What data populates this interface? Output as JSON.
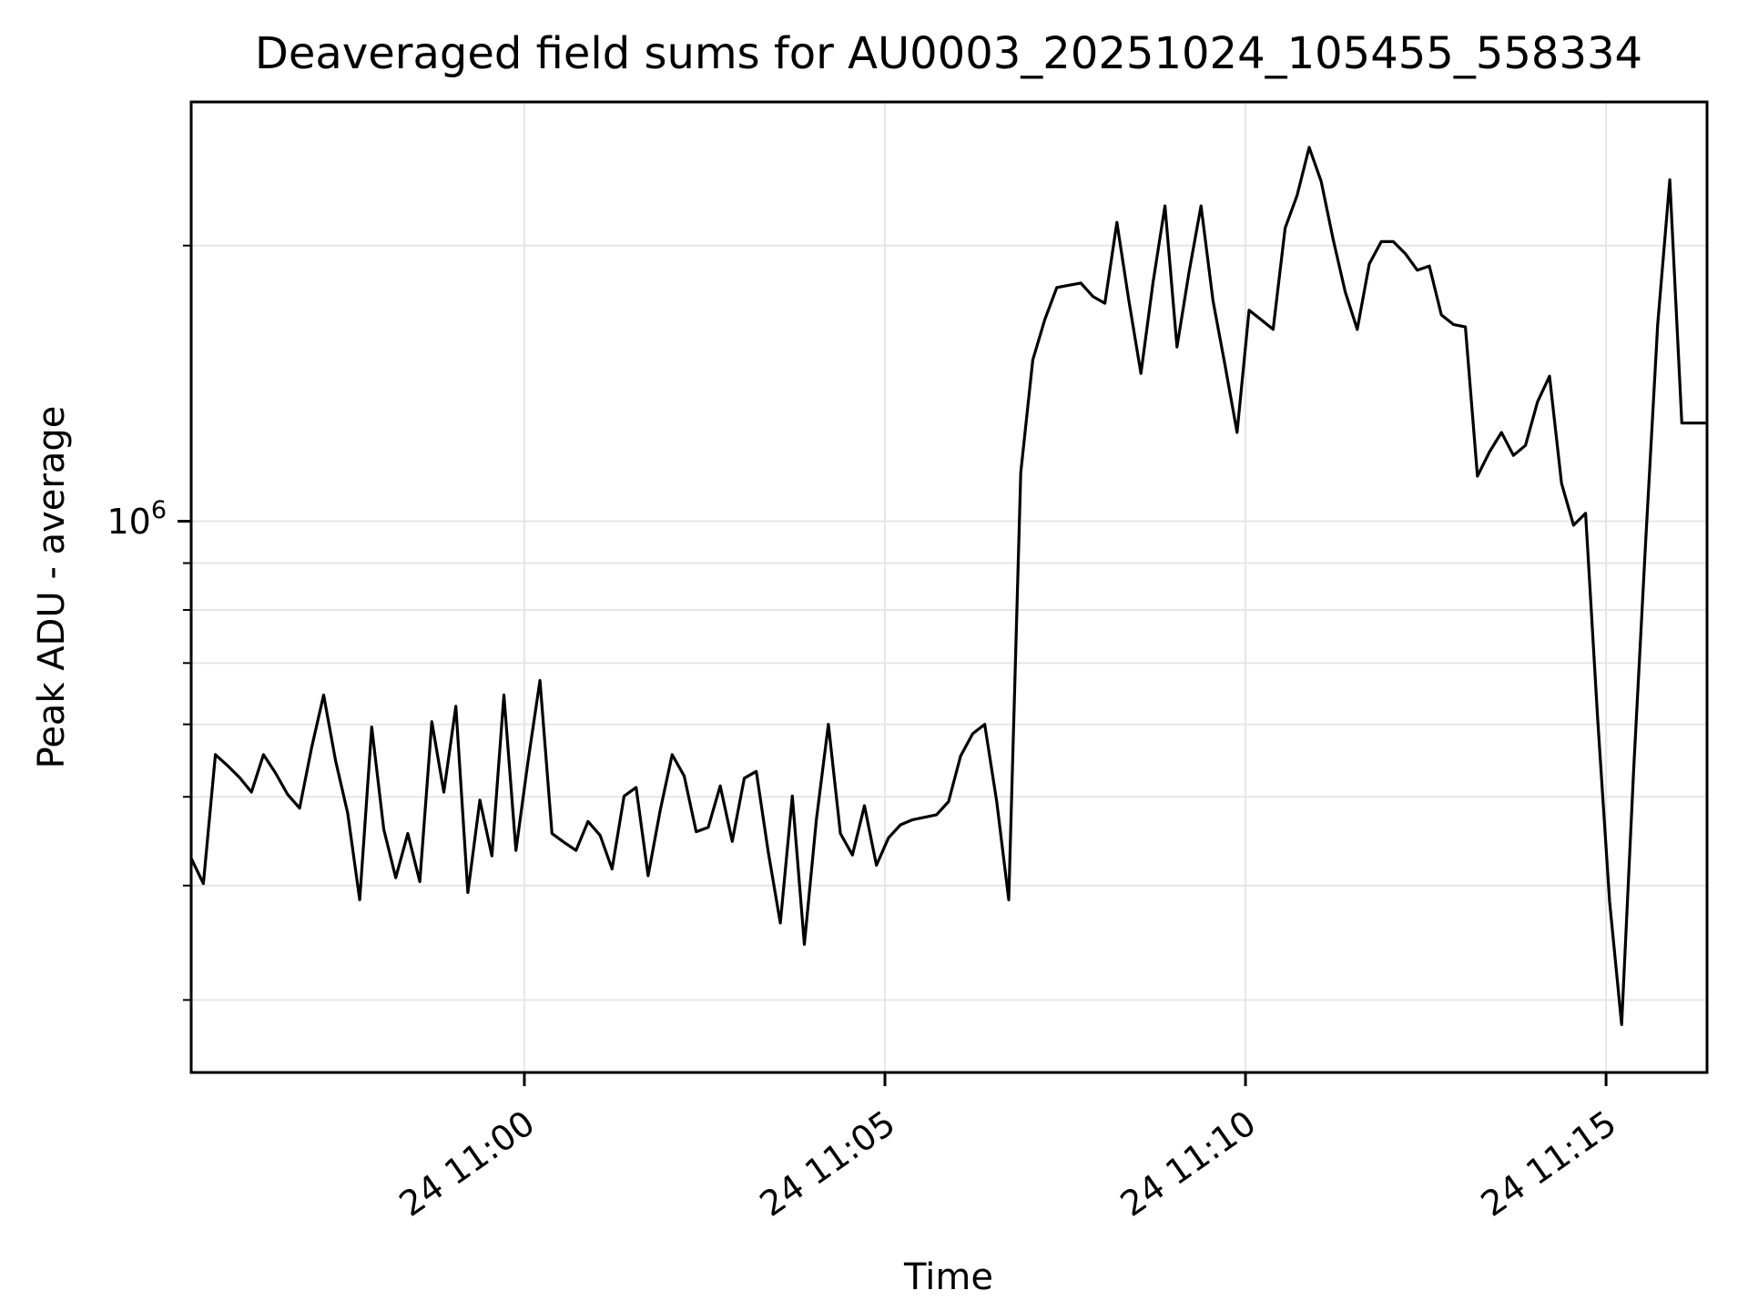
{
  "chart_data": {
    "type": "line",
    "title": "Deaveraged field sums for AU0003_20251024_105455_558334",
    "xlabel": "Time",
    "ylabel": "Peak ADU - average",
    "grid": true,
    "legend_position": "none",
    "line_color": "#000000",
    "grid_color": "#e6e6e6",
    "axis_color": "#000000",
    "y_axis": {
      "scale": "log",
      "min": 250000,
      "max": 2870000,
      "major_tick": {
        "value": 1000000,
        "label_base": "10",
        "label_exp": "6"
      },
      "minor_ticks": [
        300000,
        400000,
        500000,
        600000,
        700000,
        800000,
        900000,
        2000000
      ]
    },
    "x_axis": {
      "unit": "minutes relative to 24 11:00",
      "min": -4.62,
      "max": 16.4,
      "ticks": [
        {
          "t": 0,
          "label": "24 11:00"
        },
        {
          "t": 5,
          "label": "24 11:05"
        },
        {
          "t": 10,
          "label": "24 11:10"
        },
        {
          "t": 15,
          "label": "24 11:15"
        }
      ]
    },
    "series": [
      {
        "name": "Peak ADU - average",
        "t_start": -4.617,
        "t_step": 0.166667,
        "values": [
          428000,
          402000,
          556000,
          541000,
          525000,
          506000,
          556000,
          531000,
          503000,
          486000,
          566000,
          646000,
          547000,
          480000,
          386000,
          596000,
          461000,
          408000,
          456000,
          404000,
          604000,
          506000,
          628000,
          393000,
          496000,
          431000,
          646000,
          437000,
          546000,
          670000,
          456000,
          446000,
          437000,
          470000,
          454000,
          417000,
          501000,
          512000,
          410000,
          483000,
          556000,
          527000,
          458000,
          463000,
          514000,
          447000,
          524000,
          533000,
          435000,
          364000,
          501000,
          345000,
          472000,
          600000,
          456000,
          432000,
          489000,
          421000,
          451000,
          466000,
          472000,
          475000,
          478000,
          494000,
          554000,
          586000,
          600000,
          494000,
          386000,
          1130000,
          1500000,
          1660000,
          1800000,
          1810000,
          1820000,
          1760000,
          1730000,
          2120000,
          1740000,
          1450000,
          1820000,
          2210000,
          1550000,
          1870000,
          2210000,
          1740000,
          1480000,
          1250000,
          1700000,
          1660000,
          1620000,
          2090000,
          2270000,
          2560000,
          2350000,
          2030000,
          1780000,
          1620000,
          1910000,
          2020000,
          2020000,
          1960000,
          1880000,
          1900000,
          1680000,
          1640000,
          1630000,
          1120000,
          1190000,
          1250000,
          1180000,
          1210000,
          1350000,
          1440000,
          1100000,
          990000,
          1020000,
          610000,
          384000,
          282000,
          535000,
          950000,
          1640000,
          2360000,
          1280000,
          1280000,
          1280000
        ]
      }
    ]
  }
}
